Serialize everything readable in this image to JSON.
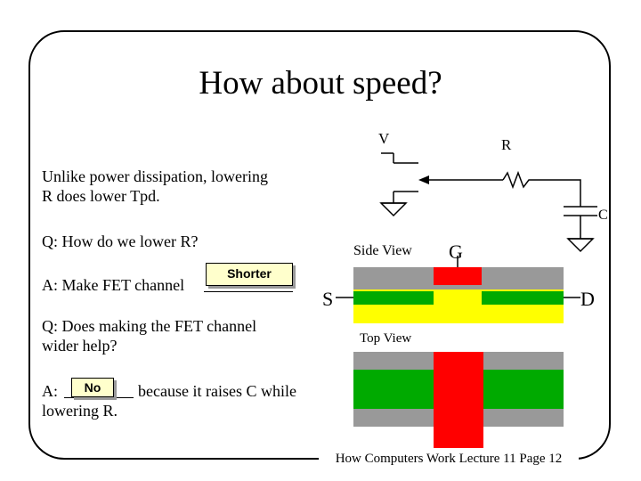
{
  "slide": {
    "title": "How about speed?",
    "statement": [
      "Unlike power dissipation, lowering",
      "R does lower Tpd."
    ],
    "q1": "Q: How do we lower R?",
    "a1_prefix": "A: Make FET channel",
    "a1_answer": "Shorter",
    "q2": [
      "Q: Does making the FET channel",
      "wider help?"
    ],
    "a2_prefix": "A:",
    "a2_answer": "No",
    "a2_suffix": "because it raises C while",
    "a2_line2": "lowering R.",
    "footer": "How Computers Work Lecture 11 Page 12"
  },
  "circuit": {
    "label_v": "V",
    "label_r": "R",
    "label_c": "C"
  },
  "fet": {
    "side_view_label": "Side View",
    "top_view_label": "Top View",
    "gate_label": "G",
    "source_label": "S",
    "drain_label": "D"
  },
  "colors": {
    "gate": "#ff0000",
    "diffusion": "#00aa00",
    "substrate": "#999999",
    "channel": "#ffff00",
    "answer_box": "#ffffcc"
  }
}
